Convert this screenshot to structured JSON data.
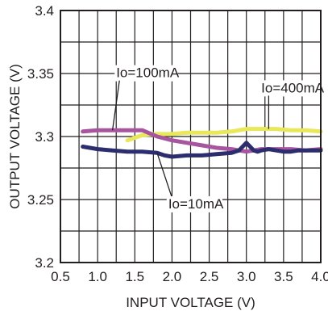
{
  "chart_data": {
    "type": "line",
    "title": "",
    "xlabel": "INPUT VOLTAGE (V)",
    "ylabel": "OUTPUT VOLTAGE (V)",
    "xlim": [
      0.5,
      4.0
    ],
    "ylim": [
      3.2,
      3.4
    ],
    "xticks": [
      0.5,
      1.0,
      1.5,
      2.0,
      2.5,
      3.0,
      3.5,
      4.0
    ],
    "xtick_labels": [
      "0.5",
      "1.0",
      "1.5",
      "2.0",
      "2.5",
      "3.0",
      "3.5",
      "4.0"
    ],
    "yticks": [
      3.2,
      3.25,
      3.3,
      3.35,
      3.4
    ],
    "ytick_labels": [
      "3.2",
      "3.25",
      "3.3",
      "3.35",
      "3.4"
    ],
    "grid": true,
    "legend": "none",
    "series": [
      {
        "name": "Io=10mA",
        "color": "#2b2d6e",
        "x": [
          0.8,
          1.0,
          1.2,
          1.4,
          1.6,
          1.8,
          1.9,
          2.0,
          2.2,
          2.4,
          2.6,
          2.8,
          2.9,
          3.0,
          3.1,
          3.15,
          3.2,
          3.3,
          3.4,
          3.5,
          3.6,
          3.7,
          3.8,
          4.0
        ],
        "values": [
          3.292,
          3.29,
          3.289,
          3.288,
          3.288,
          3.287,
          3.285,
          3.284,
          3.285,
          3.285,
          3.286,
          3.287,
          3.289,
          3.295,
          3.289,
          3.288,
          3.289,
          3.29,
          3.289,
          3.288,
          3.288,
          3.289,
          3.289,
          3.289
        ]
      },
      {
        "name": "Io=100mA",
        "color": "#a6559e",
        "x": [
          0.8,
          1.0,
          1.2,
          1.4,
          1.6,
          1.8,
          2.0,
          2.2,
          2.4,
          2.6,
          2.8,
          3.0,
          3.2,
          3.4,
          3.6,
          3.8,
          4.0
        ],
        "values": [
          3.304,
          3.305,
          3.305,
          3.305,
          3.305,
          3.3,
          3.297,
          3.295,
          3.293,
          3.291,
          3.29,
          3.288,
          3.29,
          3.29,
          3.29,
          3.289,
          3.29
        ]
      },
      {
        "name": "Io=400mA",
        "color": "#e8e85a",
        "x": [
          1.4,
          1.6,
          1.8,
          2.0,
          2.2,
          2.4,
          2.6,
          2.8,
          3.0,
          3.2,
          3.4,
          3.6,
          3.8,
          4.0
        ],
        "values": [
          3.297,
          3.301,
          3.302,
          3.302,
          3.303,
          3.303,
          3.303,
          3.304,
          3.306,
          3.306,
          3.306,
          3.305,
          3.305,
          3.304
        ]
      }
    ],
    "annotations": [
      {
        "text": "Io=100mA",
        "series": "Io=100mA",
        "x": 1.25,
        "y": 3.347,
        "arrow_x": 1.2,
        "arrow_y": 3.305
      },
      {
        "text": "Io=400mA",
        "series": "Io=400mA",
        "x": 3.2,
        "y": 3.335,
        "arrow_x": 3.3,
        "arrow_y": 3.306
      },
      {
        "text": "Io=10mA",
        "series": "Io=10mA",
        "x": 1.95,
        "y": 3.243,
        "arrow_x": 1.8,
        "arrow_y": 3.287
      }
    ]
  }
}
